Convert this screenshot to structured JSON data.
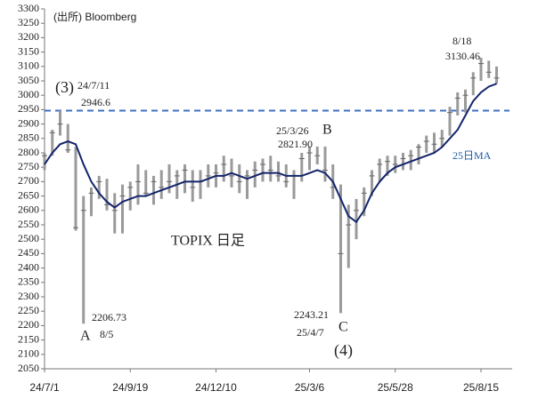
{
  "chart_data": {
    "type": "range",
    "categories": [
      "24/7/1",
      null,
      null,
      null,
      null,
      null,
      null,
      null,
      null,
      null,
      null,
      "24/9/19",
      null,
      null,
      null,
      null,
      null,
      null,
      null,
      null,
      null,
      null,
      "24/12/10",
      null,
      null,
      null,
      null,
      null,
      null,
      null,
      null,
      null,
      null,
      null,
      "25/3/6",
      null,
      null,
      null,
      null,
      null,
      null,
      null,
      null,
      null,
      null,
      "25/5/28",
      null,
      null,
      null,
      null,
      null,
      null,
      null,
      null,
      null,
      null,
      "25/8/15",
      null,
      null
    ],
    "series": [
      {
        "name": "TOPIX 日足",
        "color": "#9a9a9a",
        "low": [
          2740,
          2790,
          2860,
          2800,
          2530,
          2206.73,
          2580,
          2640,
          2600,
          2520,
          2520,
          2600,
          2620,
          2650,
          2620,
          2640,
          2660,
          2640,
          2660,
          2630,
          2640,
          2680,
          2680,
          2700,
          2680,
          2660,
          2640,
          2680,
          2700,
          2700,
          2700,
          2680,
          2640,
          2700,
          2740,
          2760,
          2700,
          2640,
          2243.21,
          2400,
          2500,
          2580,
          2650,
          2700,
          2720,
          2730,
          2740,
          2740,
          2760,
          2800,
          2800,
          2820,
          2860,
          2930,
          2940,
          3000,
          3050,
          3060,
          3040
        ],
        "high": [
          2800,
          2880,
          2946.6,
          2900,
          2820,
          2650,
          2680,
          2720,
          2710,
          2660,
          2690,
          2700,
          2760,
          2740,
          2720,
          2740,
          2760,
          2740,
          2760,
          2740,
          2740,
          2760,
          2760,
          2790,
          2780,
          2760,
          2740,
          2770,
          2780,
          2790,
          2770,
          2760,
          2740,
          2800,
          2821.9,
          2822,
          2821.9,
          2760,
          2690,
          2620,
          2640,
          2680,
          2740,
          2780,
          2790,
          2790,
          2800,
          2810,
          2830,
          2860,
          2870,
          2880,
          2960,
          3010,
          3020,
          3080,
          3130.46,
          3120,
          3100
        ],
        "values": [
          2790,
          2870,
          2900,
          2810,
          2540,
          2600,
          2660,
          2700,
          2620,
          2600,
          2650,
          2680,
          2700,
          2660,
          2700,
          2680,
          2700,
          2720,
          2740,
          2680,
          2700,
          2720,
          2730,
          2760,
          2720,
          2700,
          2720,
          2740,
          2760,
          2740,
          2720,
          2700,
          2720,
          2780,
          2800,
          2790,
          2740,
          2680,
          2450,
          2550,
          2600,
          2660,
          2720,
          2760,
          2770,
          2760,
          2780,
          2790,
          2820,
          2840,
          2830,
          2850,
          2940,
          2990,
          3000,
          3060,
          3110,
          3080,
          3060
        ]
      },
      {
        "name": "25日MA",
        "color": "#13246b",
        "values": [
          2760,
          2800,
          2830,
          2840,
          2830,
          2760,
          2700,
          2660,
          2630,
          2610,
          2630,
          2640,
          2650,
          2650,
          2660,
          2670,
          2680,
          2690,
          2700,
          2700,
          2700,
          2710,
          2720,
          2720,
          2730,
          2720,
          2710,
          2720,
          2730,
          2730,
          2730,
          2720,
          2720,
          2720,
          2730,
          2740,
          2730,
          2700,
          2640,
          2580,
          2560,
          2600,
          2660,
          2700,
          2730,
          2750,
          2760,
          2770,
          2780,
          2790,
          2800,
          2820,
          2850,
          2880,
          2930,
          2980,
          3010,
          3030,
          3040
        ]
      }
    ],
    "reference_line": {
      "value": 2946.6,
      "color": "#3f6fc4"
    },
    "annotations": [
      "(出所) Bloomberg",
      "(3)",
      "24/7/11",
      "2946.6",
      "2206.73",
      "8/5",
      "A",
      "25/3/26",
      "2821.90",
      "B",
      "2243.21",
      "25/4/7",
      "C",
      "(4)",
      "8/18",
      "3130.46"
    ],
    "ylim": [
      2050,
      3300
    ],
    "yticks": [
      2050,
      2100,
      2150,
      2200,
      2250,
      2300,
      2350,
      2400,
      2450,
      2500,
      2550,
      2600,
      2650,
      2700,
      2750,
      2800,
      2850,
      2900,
      2950,
      3000,
      3050,
      3100,
      3150,
      3200,
      3250,
      3300
    ],
    "grid": false
  }
}
